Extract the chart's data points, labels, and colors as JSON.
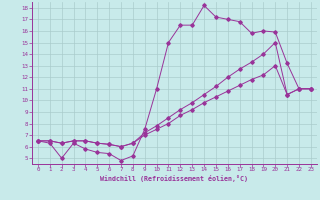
{
  "xlabel": "Windchill (Refroidissement éolien,°C)",
  "bg_color": "#c8eaea",
  "line_color": "#993399",
  "grid_color": "#aacccc",
  "xlim": [
    -0.5,
    23.5
  ],
  "ylim": [
    4.5,
    18.5
  ],
  "xticks": [
    0,
    1,
    2,
    3,
    4,
    5,
    6,
    7,
    8,
    9,
    10,
    11,
    12,
    13,
    14,
    15,
    16,
    17,
    18,
    19,
    20,
    21,
    22,
    23
  ],
  "yticks": [
    5,
    6,
    7,
    8,
    9,
    10,
    11,
    12,
    13,
    14,
    15,
    16,
    17,
    18
  ],
  "line1_x": [
    0,
    1,
    2,
    3,
    4,
    5,
    6,
    7,
    8,
    9,
    10,
    11,
    12,
    13,
    14,
    15,
    16,
    17,
    18,
    19,
    20,
    21,
    22,
    23
  ],
  "line1_y": [
    6.5,
    6.3,
    5.0,
    6.3,
    5.8,
    5.5,
    5.4,
    4.8,
    5.2,
    7.5,
    11.0,
    15.0,
    16.5,
    16.5,
    18.2,
    17.2,
    17.0,
    16.8,
    15.8,
    16.0,
    15.9,
    13.2,
    11.0,
    11.0
  ],
  "line2_x": [
    0,
    1,
    2,
    3,
    4,
    5,
    6,
    7,
    8,
    9,
    10,
    11,
    12,
    13,
    14,
    15,
    16,
    17,
    18,
    19,
    20,
    21,
    22,
    23
  ],
  "line2_y": [
    6.5,
    6.5,
    6.3,
    6.5,
    6.5,
    6.3,
    6.2,
    6.0,
    6.3,
    7.2,
    7.8,
    8.5,
    9.2,
    9.8,
    10.5,
    11.2,
    12.0,
    12.7,
    13.3,
    14.0,
    15.0,
    10.5,
    11.0,
    11.0
  ],
  "line3_x": [
    0,
    1,
    2,
    3,
    4,
    5,
    6,
    7,
    8,
    9,
    10,
    11,
    12,
    13,
    14,
    15,
    16,
    17,
    18,
    19,
    20,
    21,
    22,
    23
  ],
  "line3_y": [
    6.5,
    6.5,
    6.3,
    6.5,
    6.5,
    6.3,
    6.2,
    6.0,
    6.3,
    7.0,
    7.5,
    8.0,
    8.7,
    9.2,
    9.8,
    10.3,
    10.8,
    11.3,
    11.8,
    12.2,
    13.0,
    10.5,
    11.0,
    11.0
  ]
}
